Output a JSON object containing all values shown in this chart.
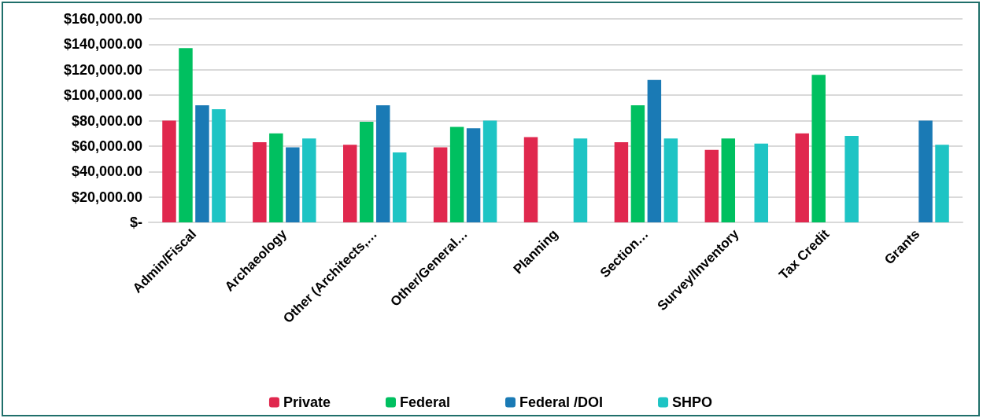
{
  "chart_data": {
    "type": "bar",
    "categories": [
      "Admin/Fiscal",
      "Archaeology",
      "Other (Architects,…",
      "Other/General…",
      "Planning",
      "Section…",
      "Survey/Inventory",
      "Tax Credit",
      "Grants"
    ],
    "series": [
      {
        "name": "Private",
        "color": "#e0284e",
        "values": [
          80000,
          63000,
          61000,
          59000,
          67000,
          63000,
          57000,
          70000,
          null
        ]
      },
      {
        "name": "Federal",
        "color": "#00c060",
        "values": [
          137000,
          70000,
          79000,
          75000,
          null,
          92000,
          66000,
          116000,
          null
        ]
      },
      {
        "name": "Federal /DOI",
        "color": "#1a7ab5",
        "values": [
          92000,
          59000,
          92000,
          74000,
          null,
          112000,
          null,
          null,
          80000
        ]
      },
      {
        "name": "SHPO",
        "color": "#1ec4c4",
        "values": [
          89000,
          66000,
          55000,
          80000,
          66000,
          66000,
          62000,
          68000,
          61000
        ]
      }
    ],
    "ylim": [
      0,
      160000
    ],
    "yticks": [
      {
        "value": 0,
        "label": "$-"
      },
      {
        "value": 20000,
        "label": "$20,000.00"
      },
      {
        "value": 40000,
        "label": "$40,000.00"
      },
      {
        "value": 60000,
        "label": "$60,000.00"
      },
      {
        "value": 80000,
        "label": "$80,000.00"
      },
      {
        "value": 100000,
        "label": "$100,000.00"
      },
      {
        "value": 120000,
        "label": "$120,000.00"
      },
      {
        "value": 140000,
        "label": "$140,000.00"
      },
      {
        "value": 160000,
        "label": "$160,000.00"
      }
    ],
    "grid": "y",
    "legend": "bottom"
  }
}
